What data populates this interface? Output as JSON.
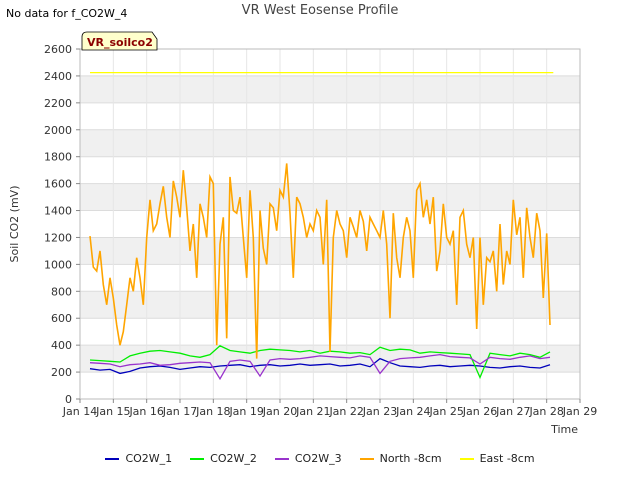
{
  "header": {
    "note": "No data for f_CO2W_4",
    "title": "VR West Eosense Profile"
  },
  "chart_data": {
    "type": "line",
    "title": "VR West Eosense Profile",
    "xlabel": "Time",
    "ylabel": "Soil CO2 (mV)",
    "xlim": [
      14,
      29
    ],
    "ylim": [
      0,
      2600
    ],
    "x_ticks": [
      {
        "v": 14,
        "label": "Jan 14"
      },
      {
        "v": 15,
        "label": "Jan 15"
      },
      {
        "v": 16,
        "label": "Jan 16"
      },
      {
        "v": 17,
        "label": "Jan 17"
      },
      {
        "v": 18,
        "label": "Jan 18"
      },
      {
        "v": 19,
        "label": "Jan 19"
      },
      {
        "v": 20,
        "label": "Jan 20"
      },
      {
        "v": 21,
        "label": "Jan 21"
      },
      {
        "v": 22,
        "label": "Jan 22"
      },
      {
        "v": 23,
        "label": "Jan 23"
      },
      {
        "v": 24,
        "label": "Jan 24"
      },
      {
        "v": 25,
        "label": "Jan 25"
      },
      {
        "v": 26,
        "label": "Jan 26"
      },
      {
        "v": 27,
        "label": "Jan 27"
      },
      {
        "v": 28,
        "label": "Jan 28"
      },
      {
        "v": 29,
        "label": "Jan 29"
      }
    ],
    "y_ticks": [
      0,
      200,
      400,
      600,
      800,
      1000,
      1200,
      1400,
      1600,
      1800,
      2000,
      2200,
      2400,
      2600
    ],
    "grid": true,
    "banded_background": true,
    "legend_position": "bottom",
    "annotation": "VR_soilco2",
    "series": [
      {
        "name": "CO2W_1",
        "color": "#0000bb",
        "x": [
          14.3,
          14.6,
          14.9,
          15.2,
          15.5,
          15.8,
          16.1,
          16.4,
          16.7,
          17.0,
          17.3,
          17.6,
          17.9,
          18.2,
          18.5,
          18.8,
          19.1,
          19.4,
          19.7,
          20.0,
          20.3,
          20.6,
          20.9,
          21.2,
          21.5,
          21.8,
          22.1,
          22.4,
          22.7,
          23.0,
          23.3,
          23.6,
          23.9,
          24.2,
          24.5,
          24.8,
          25.1,
          25.4,
          25.7,
          26.0,
          26.3,
          26.6,
          26.9,
          27.2,
          27.5,
          27.8,
          28.1
        ],
        "values": [
          225,
          215,
          220,
          190,
          205,
          230,
          240,
          245,
          235,
          220,
          230,
          240,
          235,
          245,
          250,
          255,
          240,
          250,
          255,
          245,
          250,
          260,
          250,
          255,
          260,
          245,
          250,
          260,
          240,
          300,
          270,
          245,
          240,
          235,
          245,
          250,
          240,
          245,
          250,
          245,
          235,
          230,
          240,
          245,
          235,
          230,
          255
        ]
      },
      {
        "name": "CO2W_2",
        "color": "#00ee00",
        "x": [
          14.3,
          14.6,
          14.9,
          15.2,
          15.5,
          15.8,
          16.1,
          16.4,
          16.7,
          17.0,
          17.3,
          17.6,
          17.9,
          18.2,
          18.5,
          18.8,
          19.1,
          19.4,
          19.7,
          20.0,
          20.3,
          20.6,
          20.9,
          21.2,
          21.5,
          21.8,
          22.1,
          22.4,
          22.7,
          23.0,
          23.3,
          23.6,
          23.9,
          24.2,
          24.5,
          24.8,
          25.1,
          25.4,
          25.7,
          26.0,
          26.3,
          26.6,
          26.9,
          27.2,
          27.5,
          27.8,
          28.1
        ],
        "values": [
          290,
          285,
          280,
          275,
          320,
          340,
          355,
          360,
          350,
          340,
          320,
          310,
          330,
          395,
          360,
          350,
          340,
          360,
          370,
          365,
          360,
          350,
          360,
          340,
          355,
          350,
          340,
          345,
          330,
          385,
          360,
          370,
          365,
          340,
          350,
          345,
          340,
          335,
          330,
          160,
          340,
          330,
          320,
          340,
          330,
          310,
          350
        ]
      },
      {
        "name": "CO2W_3",
        "color": "#9933cc",
        "x": [
          14.3,
          14.6,
          14.9,
          15.2,
          15.5,
          15.8,
          16.1,
          16.4,
          16.7,
          17.0,
          17.3,
          17.6,
          17.9,
          18.2,
          18.5,
          18.8,
          19.1,
          19.4,
          19.7,
          20.0,
          20.3,
          20.6,
          20.9,
          21.2,
          21.5,
          21.8,
          22.1,
          22.4,
          22.7,
          23.0,
          23.3,
          23.6,
          23.9,
          24.2,
          24.5,
          24.8,
          25.1,
          25.4,
          25.7,
          26.0,
          26.3,
          26.6,
          26.9,
          27.2,
          27.5,
          27.8,
          28.1
        ],
        "values": [
          270,
          265,
          260,
          240,
          255,
          260,
          270,
          250,
          255,
          265,
          270,
          275,
          270,
          150,
          280,
          290,
          280,
          170,
          290,
          300,
          295,
          300,
          310,
          320,
          315,
          310,
          305,
          320,
          310,
          190,
          280,
          300,
          305,
          310,
          320,
          330,
          315,
          310,
          305,
          260,
          310,
          300,
          295,
          310,
          320,
          300,
          310
        ]
      },
      {
        "name": "North -8cm",
        "color": "#ffa500",
        "x": [
          14.3,
          14.4,
          14.5,
          14.6,
          14.7,
          14.8,
          14.9,
          15.0,
          15.1,
          15.2,
          15.3,
          15.4,
          15.5,
          15.6,
          15.7,
          15.8,
          15.9,
          16.0,
          16.1,
          16.2,
          16.3,
          16.4,
          16.5,
          16.6,
          16.7,
          16.8,
          16.9,
          17.0,
          17.1,
          17.2,
          17.3,
          17.4,
          17.5,
          17.6,
          17.7,
          17.8,
          17.9,
          18.0,
          18.1,
          18.2,
          18.3,
          18.4,
          18.5,
          18.6,
          18.7,
          18.8,
          18.9,
          19.0,
          19.1,
          19.2,
          19.3,
          19.4,
          19.5,
          19.6,
          19.7,
          19.8,
          19.9,
          20.0,
          20.1,
          20.2,
          20.3,
          20.4,
          20.5,
          20.6,
          20.7,
          20.8,
          20.9,
          21.0,
          21.1,
          21.2,
          21.3,
          21.4,
          21.5,
          21.6,
          21.7,
          21.8,
          21.9,
          22.0,
          22.1,
          22.2,
          22.3,
          22.4,
          22.5,
          22.6,
          22.7,
          22.8,
          22.9,
          23.0,
          23.1,
          23.2,
          23.3,
          23.4,
          23.5,
          23.6,
          23.7,
          23.8,
          23.9,
          24.0,
          24.1,
          24.2,
          24.3,
          24.4,
          24.5,
          24.6,
          24.7,
          24.8,
          24.9,
          25.0,
          25.1,
          25.2,
          25.3,
          25.4,
          25.5,
          25.6,
          25.7,
          25.8,
          25.9,
          26.0,
          26.1,
          26.2,
          26.3,
          26.4,
          26.5,
          26.6,
          26.7,
          26.8,
          26.9,
          27.0,
          27.1,
          27.2,
          27.3,
          27.4,
          27.5,
          27.6,
          27.7,
          27.8,
          27.9,
          28.0,
          28.1
        ],
        "values": [
          1210,
          980,
          950,
          1100,
          850,
          700,
          900,
          750,
          550,
          400,
          500,
          700,
          900,
          800,
          1050,
          900,
          700,
          1200,
          1480,
          1250,
          1300,
          1450,
          1580,
          1350,
          1200,
          1620,
          1500,
          1350,
          1700,
          1420,
          1100,
          1300,
          900,
          1450,
          1350,
          1200,
          1650,
          1600,
          400,
          1150,
          1350,
          450,
          1650,
          1400,
          1380,
          1500,
          1200,
          900,
          1550,
          1200,
          300,
          1400,
          1120,
          1000,
          1450,
          1420,
          1250,
          1550,
          1500,
          1750,
          1380,
          900,
          1500,
          1450,
          1350,
          1200,
          1300,
          1250,
          1400,
          1350,
          1000,
          1480,
          350,
          1200,
          1400,
          1300,
          1250,
          1050,
          1350,
          1280,
          1200,
          1400,
          1320,
          1100,
          1350,
          1300,
          1250,
          1200,
          1400,
          1150,
          600,
          1380,
          1050,
          900,
          1200,
          1350,
          1250,
          900,
          1550,
          1600,
          1350,
          1480,
          1300,
          1500,
          950,
          1100,
          1450,
          1200,
          1150,
          1250,
          700,
          1350,
          1400,
          1150,
          1050,
          1200,
          520,
          1200,
          700,
          1050,
          1020,
          1100,
          800,
          1300,
          850,
          1100,
          1000,
          1480,
          1220,
          1350,
          900,
          1420,
          1200,
          1050,
          1380,
          1250,
          750,
          1230,
          550
        ]
      },
      {
        "name": "East -8cm",
        "color": "#ffff00",
        "x": [
          14.3,
          28.2
        ],
        "values": [
          2425,
          2425
        ]
      }
    ]
  }
}
